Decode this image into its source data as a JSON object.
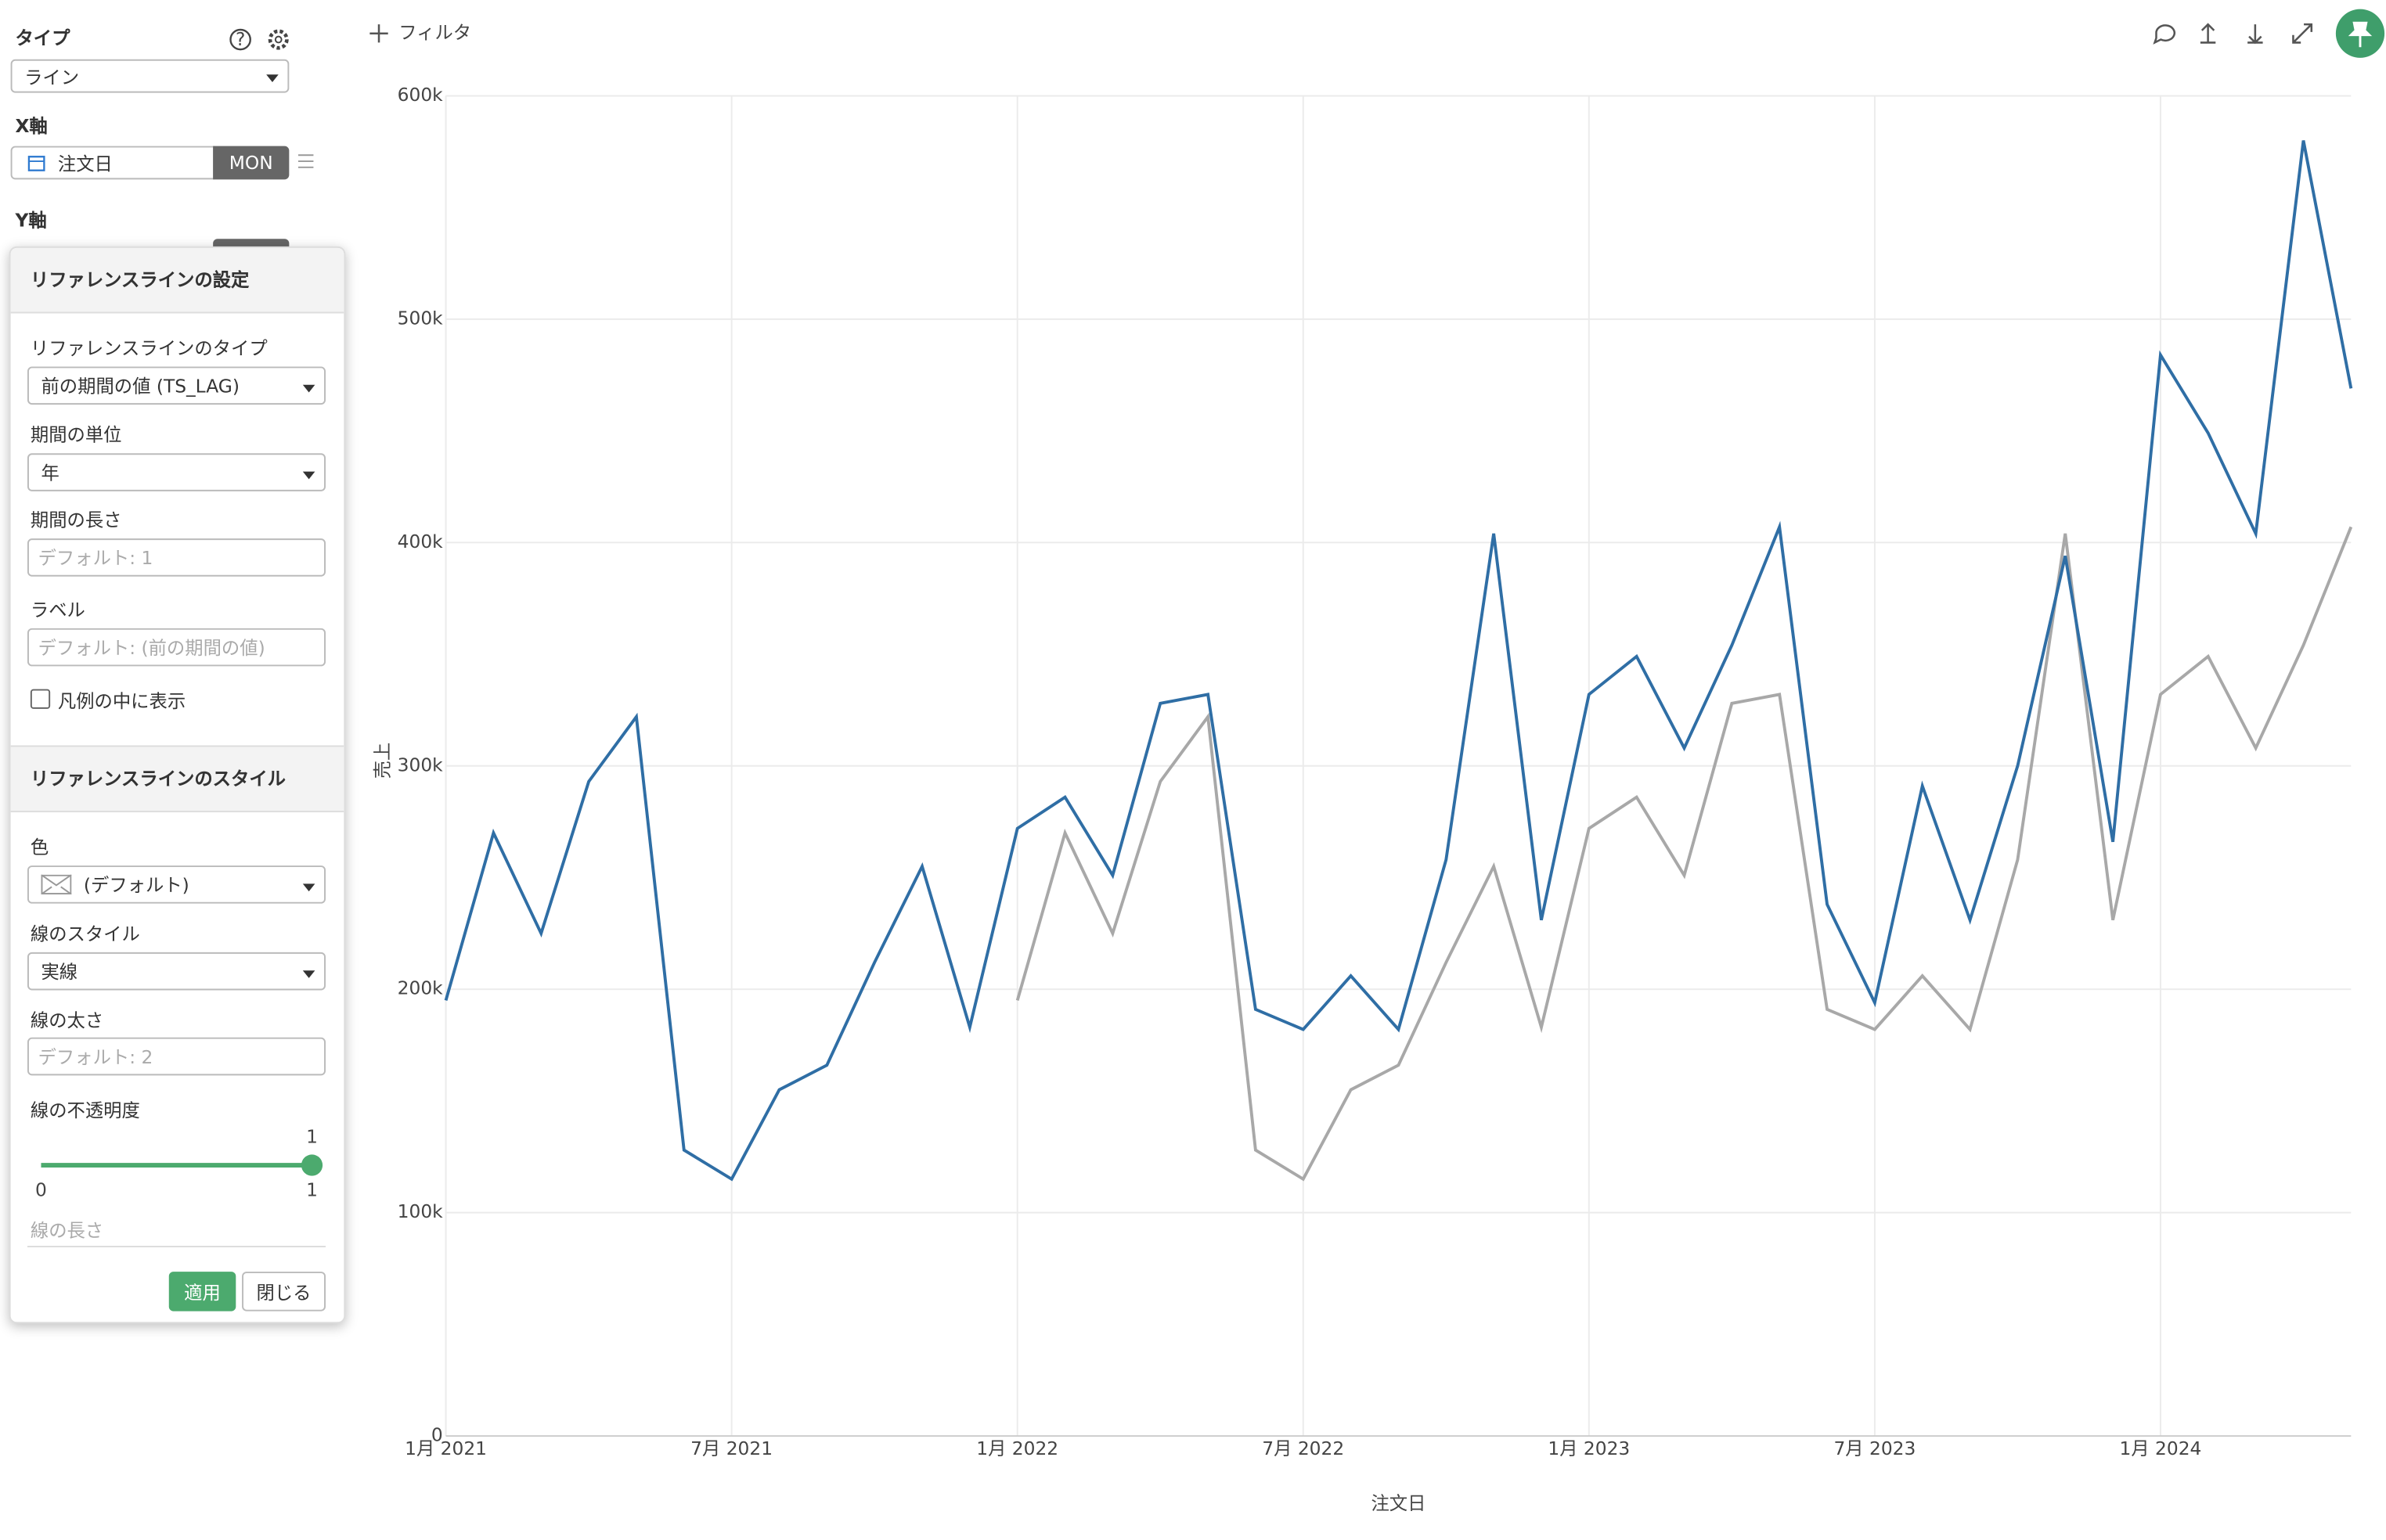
{
  "sidebar": {
    "type_label": "タイプ",
    "type_value": "ライン",
    "x_label": "X軸",
    "x_field": "注文日",
    "x_unit": "MON",
    "y_label": "Y軸"
  },
  "toolbar": {
    "filter": "フィルタ"
  },
  "panel": {
    "title": "リファレンスラインの設定",
    "ref_type_label": "リファレンスラインのタイプ",
    "ref_type_value": "前の期間の値 (TS_LAG)",
    "period_unit_label": "期間の単位",
    "period_unit_value": "年",
    "period_length_label": "期間の長さ",
    "period_length_placeholder": "デフォルト: 1",
    "label_label": "ラベル",
    "label_placeholder": "デフォルト: (前の期間の値)",
    "show_in_legend": "凡例の中に表示",
    "style_title": "リファレンスラインのスタイル",
    "color_label": "色",
    "color_value": "(デフォルト)",
    "line_style_label": "線のスタイル",
    "line_style_value": "実線",
    "line_width_label": "線の太さ",
    "line_width_placeholder": "デフォルト: 2",
    "opacity_label": "線の不透明度",
    "slider": {
      "min": 0,
      "max": 1,
      "value": 1
    },
    "line_length_label": "線の長さ",
    "apply": "適用",
    "close": "閉じる"
  },
  "chart_data": {
    "type": "line",
    "x_label": "注文日",
    "y_label": "売上",
    "categories": [
      "1月 2021",
      null,
      null,
      null,
      null,
      null,
      "7月 2021",
      null,
      null,
      null,
      null,
      null,
      "1月 2022",
      null,
      null,
      null,
      null,
      null,
      "7月 2022",
      null,
      null,
      null,
      null,
      null,
      "1月 2023",
      null,
      null,
      null,
      null,
      null,
      "7月 2023",
      null,
      null,
      null,
      null,
      null,
      "1月 2024",
      null,
      null,
      null,
      null
    ],
    "series": [
      {
        "color": "#2f6ea5",
        "values": [
          195000,
          270000,
          225000,
          293000,
          322000,
          128000,
          115000,
          155000,
          166000,
          212000,
          255000,
          183000,
          272000,
          286000,
          251000,
          328000,
          332000,
          191000,
          182000,
          206000,
          182000,
          258000,
          404000,
          231000,
          332000,
          349000,
          308000,
          354000,
          407000,
          238000,
          194000,
          291000,
          231000,
          300000,
          394000,
          266000,
          484000,
          449000,
          404000,
          580000,
          469000
        ]
      },
      {
        "color": "#a8a8a8",
        "values": [
          null,
          null,
          null,
          null,
          null,
          null,
          null,
          null,
          null,
          null,
          null,
          null,
          195000,
          270000,
          225000,
          293000,
          322000,
          128000,
          115000,
          155000,
          166000,
          212000,
          255000,
          183000,
          272000,
          286000,
          251000,
          328000,
          332000,
          191000,
          182000,
          206000,
          182000,
          258000,
          404000,
          231000,
          332000,
          349000,
          308000,
          354000,
          407000
        ]
      }
    ],
    "ylim": [
      0,
      600000
    ],
    "yticks": [
      0,
      {
        "value": 100000,
        "label": "100k"
      },
      {
        "value": 200000,
        "label": "200k"
      },
      {
        "value": 300000,
        "label": "300k"
      },
      {
        "value": 400000,
        "label": "400k"
      },
      {
        "value": 500000,
        "label": "500k"
      },
      {
        "value": 600000,
        "label": "600k"
      }
    ],
    "grid": true
  }
}
